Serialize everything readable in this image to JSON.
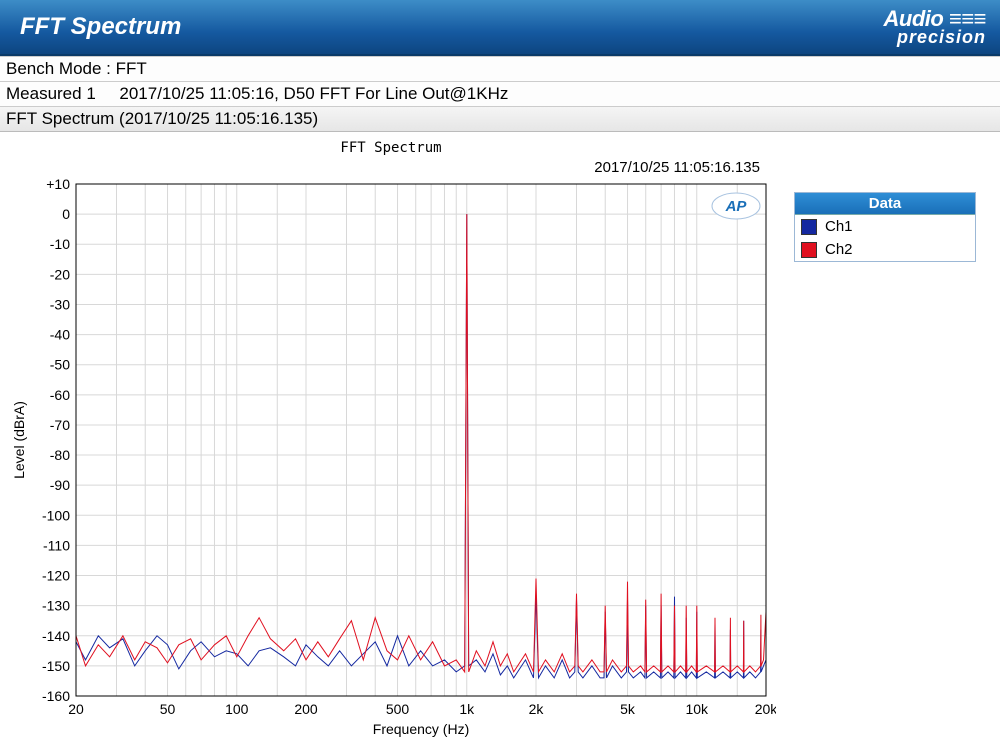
{
  "header": {
    "title": "FFT Spectrum",
    "logo_top": "Audio",
    "logo_bot": "precision"
  },
  "info": {
    "mode": "Bench Mode : FFT",
    "measured": "Measured 1     2017/10/25 11:05:16, D50 FFT For Line Out@1KHz",
    "subtitle": "FFT Spectrum (2017/10/25 11:05:16.135)"
  },
  "chart": {
    "title": "FFT Spectrum",
    "timestamp": "2017/10/25 11:05:16.135",
    "xlabel": "Frequency (Hz)",
    "ylabel": "Level (dBrA)",
    "ap_badge": "AP",
    "xscale": "log",
    "xlim": [
      20,
      20000
    ],
    "ylim": [
      -160,
      10
    ],
    "ytick_step": 10,
    "xticks": [
      20,
      50,
      100,
      200,
      500,
      1000,
      2000,
      5000,
      10000,
      20000
    ],
    "xtick_labels": [
      "20",
      "50",
      "100",
      "200",
      "500",
      "1k",
      "2k",
      "5k",
      "10k",
      "20k"
    ],
    "xminor": [
      30,
      40,
      60,
      70,
      80,
      90,
      150,
      300,
      400,
      600,
      700,
      800,
      900,
      1500,
      3000,
      4000,
      6000,
      7000,
      8000,
      9000,
      15000
    ],
    "grid_color": "#d8d8d8",
    "background_color": "#ffffff",
    "series": [
      {
        "name": "Ch1",
        "color": "#1428a0",
        "data": [
          [
            20,
            -142
          ],
          [
            22,
            -148
          ],
          [
            25,
            -140
          ],
          [
            28,
            -144
          ],
          [
            32,
            -141
          ],
          [
            36,
            -150
          ],
          [
            40,
            -145
          ],
          [
            45,
            -140
          ],
          [
            50,
            -143
          ],
          [
            56,
            -151
          ],
          [
            63,
            -145
          ],
          [
            70,
            -142
          ],
          [
            80,
            -147
          ],
          [
            90,
            -145
          ],
          [
            100,
            -146
          ],
          [
            112,
            -150
          ],
          [
            125,
            -145
          ],
          [
            140,
            -144
          ],
          [
            160,
            -147
          ],
          [
            180,
            -150
          ],
          [
            200,
            -143
          ],
          [
            225,
            -147
          ],
          [
            250,
            -150
          ],
          [
            280,
            -145
          ],
          [
            315,
            -150
          ],
          [
            355,
            -146
          ],
          [
            400,
            -142
          ],
          [
            450,
            -150
          ],
          [
            500,
            -140
          ],
          [
            560,
            -150
          ],
          [
            630,
            -145
          ],
          [
            710,
            -150
          ],
          [
            800,
            -148
          ],
          [
            900,
            -152
          ],
          [
            980,
            -150
          ],
          [
            1000,
            0
          ],
          [
            1020,
            -150
          ],
          [
            1100,
            -148
          ],
          [
            1200,
            -152
          ],
          [
            1300,
            -146
          ],
          [
            1400,
            -153
          ],
          [
            1500,
            -150
          ],
          [
            1600,
            -154
          ],
          [
            1800,
            -148
          ],
          [
            1950,
            -154
          ],
          [
            2000,
            -126
          ],
          [
            2050,
            -154
          ],
          [
            2200,
            -150
          ],
          [
            2400,
            -154
          ],
          [
            2600,
            -148
          ],
          [
            2800,
            -154
          ],
          [
            2950,
            -152
          ],
          [
            3000,
            -128
          ],
          [
            3050,
            -152
          ],
          [
            3200,
            -154
          ],
          [
            3500,
            -150
          ],
          [
            3800,
            -154
          ],
          [
            3950,
            -154
          ],
          [
            4000,
            -132
          ],
          [
            4050,
            -154
          ],
          [
            4300,
            -150
          ],
          [
            4700,
            -154
          ],
          [
            4950,
            -152
          ],
          [
            5000,
            -128
          ],
          [
            5050,
            -152
          ],
          [
            5300,
            -154
          ],
          [
            5700,
            -152
          ],
          [
            5950,
            -154
          ],
          [
            6000,
            -130
          ],
          [
            6050,
            -154
          ],
          [
            6500,
            -152
          ],
          [
            6950,
            -154
          ],
          [
            7000,
            -130
          ],
          [
            7050,
            -154
          ],
          [
            7500,
            -152
          ],
          [
            7950,
            -154
          ],
          [
            8000,
            -127
          ],
          [
            8050,
            -154
          ],
          [
            8500,
            -152
          ],
          [
            8950,
            -154
          ],
          [
            9000,
            -134
          ],
          [
            9050,
            -154
          ],
          [
            9500,
            -152
          ],
          [
            9950,
            -154
          ],
          [
            10000,
            -132
          ],
          [
            10050,
            -154
          ],
          [
            11000,
            -152
          ],
          [
            11950,
            -154
          ],
          [
            12000,
            -136
          ],
          [
            12050,
            -154
          ],
          [
            13000,
            -152
          ],
          [
            13950,
            -154
          ],
          [
            14000,
            -138
          ],
          [
            14050,
            -154
          ],
          [
            15000,
            -152
          ],
          [
            15950,
            -154
          ],
          [
            16000,
            -135
          ],
          [
            16050,
            -154
          ],
          [
            17000,
            -152
          ],
          [
            18000,
            -154
          ],
          [
            18950,
            -152
          ],
          [
            19000,
            -138
          ],
          [
            19050,
            -152
          ],
          [
            19500,
            -150
          ],
          [
            20000,
            -148
          ]
        ]
      },
      {
        "name": "Ch2",
        "color": "#e01020",
        "data": [
          [
            20,
            -140
          ],
          [
            22,
            -150
          ],
          [
            25,
            -143
          ],
          [
            28,
            -147
          ],
          [
            32,
            -140
          ],
          [
            36,
            -148
          ],
          [
            40,
            -142
          ],
          [
            45,
            -144
          ],
          [
            50,
            -149
          ],
          [
            56,
            -143
          ],
          [
            63,
            -141
          ],
          [
            70,
            -148
          ],
          [
            80,
            -143
          ],
          [
            90,
            -140
          ],
          [
            100,
            -147
          ],
          [
            112,
            -140
          ],
          [
            125,
            -134
          ],
          [
            140,
            -141
          ],
          [
            160,
            -145
          ],
          [
            180,
            -141
          ],
          [
            200,
            -148
          ],
          [
            225,
            -142
          ],
          [
            250,
            -147
          ],
          [
            280,
            -141
          ],
          [
            315,
            -135
          ],
          [
            355,
            -148
          ],
          [
            400,
            -134
          ],
          [
            450,
            -145
          ],
          [
            500,
            -148
          ],
          [
            560,
            -140
          ],
          [
            630,
            -148
          ],
          [
            710,
            -142
          ],
          [
            800,
            -150
          ],
          [
            900,
            -148
          ],
          [
            980,
            -152
          ],
          [
            1000,
            0
          ],
          [
            1020,
            -152
          ],
          [
            1100,
            -145
          ],
          [
            1200,
            -150
          ],
          [
            1300,
            -142
          ],
          [
            1400,
            -150
          ],
          [
            1500,
            -146
          ],
          [
            1600,
            -152
          ],
          [
            1800,
            -146
          ],
          [
            1950,
            -152
          ],
          [
            2000,
            -121
          ],
          [
            2050,
            -152
          ],
          [
            2200,
            -148
          ],
          [
            2400,
            -152
          ],
          [
            2600,
            -146
          ],
          [
            2800,
            -152
          ],
          [
            2950,
            -150
          ],
          [
            3000,
            -126
          ],
          [
            3050,
            -150
          ],
          [
            3200,
            -152
          ],
          [
            3500,
            -148
          ],
          [
            3800,
            -152
          ],
          [
            3950,
            -152
          ],
          [
            4000,
            -130
          ],
          [
            4050,
            -152
          ],
          [
            4300,
            -148
          ],
          [
            4700,
            -152
          ],
          [
            4950,
            -150
          ],
          [
            5000,
            -122
          ],
          [
            5050,
            -150
          ],
          [
            5300,
            -152
          ],
          [
            5700,
            -150
          ],
          [
            5950,
            -152
          ],
          [
            6000,
            -128
          ],
          [
            6050,
            -152
          ],
          [
            6500,
            -150
          ],
          [
            6950,
            -152
          ],
          [
            7000,
            -126
          ],
          [
            7050,
            -152
          ],
          [
            7500,
            -150
          ],
          [
            7950,
            -152
          ],
          [
            8000,
            -130
          ],
          [
            8050,
            -152
          ],
          [
            8500,
            -150
          ],
          [
            8950,
            -152
          ],
          [
            9000,
            -130
          ],
          [
            9050,
            -152
          ],
          [
            9500,
            -150
          ],
          [
            9950,
            -152
          ],
          [
            10000,
            -130
          ],
          [
            10050,
            -152
          ],
          [
            11000,
            -150
          ],
          [
            11950,
            -152
          ],
          [
            12000,
            -134
          ],
          [
            12050,
            -152
          ],
          [
            13000,
            -150
          ],
          [
            13950,
            -152
          ],
          [
            14000,
            -134
          ],
          [
            14050,
            -152
          ],
          [
            15000,
            -150
          ],
          [
            15950,
            -152
          ],
          [
            16000,
            -135
          ],
          [
            16050,
            -152
          ],
          [
            17000,
            -150
          ],
          [
            18000,
            -152
          ],
          [
            18950,
            -150
          ],
          [
            19000,
            -133
          ],
          [
            19050,
            -150
          ],
          [
            19500,
            -148
          ],
          [
            20000,
            -132
          ]
        ]
      }
    ]
  },
  "legend": {
    "title": "Data",
    "items": [
      {
        "label": "Ch1",
        "color": "#1428a0"
      },
      {
        "label": "Ch2",
        "color": "#e01020"
      }
    ]
  }
}
